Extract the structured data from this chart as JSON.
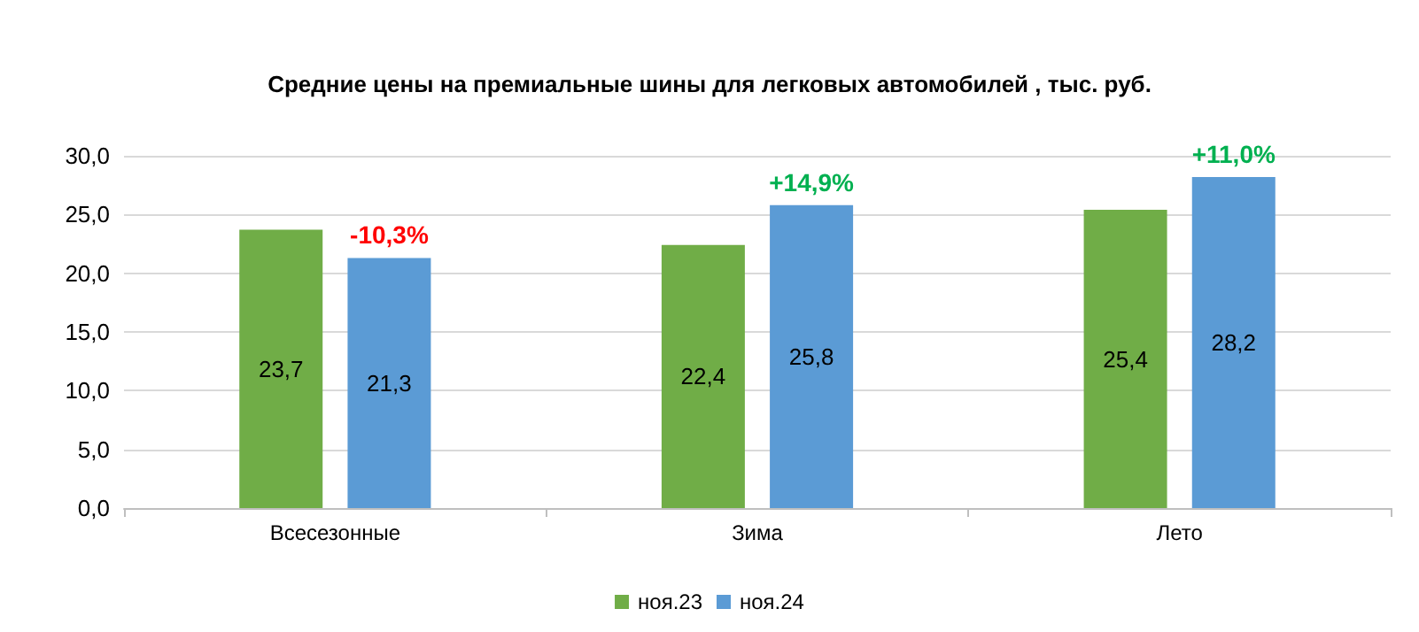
{
  "chart_data": {
    "type": "bar",
    "title": "Средние цены на премиальные шины для легковых автомобилей , тыс. руб.",
    "categories": [
      "Всесезонные",
      "Зима",
      "Лето"
    ],
    "series": [
      {
        "name": "ноя.23",
        "color": "#70ad47",
        "values": [
          23.7,
          22.4,
          25.4
        ],
        "value_labels": [
          "23,7",
          "22,4",
          "25,4"
        ]
      },
      {
        "name": "ноя.24",
        "color": "#5b9bd5",
        "values": [
          21.3,
          25.8,
          28.2
        ],
        "value_labels": [
          "21,3",
          "25,8",
          "28,2"
        ]
      }
    ],
    "ylim": [
      0,
      30
    ],
    "yticks": [
      {
        "value": 0,
        "label": "0,0"
      },
      {
        "value": 5,
        "label": "5,0"
      },
      {
        "value": 10,
        "label": "10,0"
      },
      {
        "value": 15,
        "label": "15,0"
      },
      {
        "value": 20,
        "label": "20,0"
      },
      {
        "value": 25,
        "label": "25,0"
      },
      {
        "value": 30,
        "label": "30,0"
      }
    ],
    "annotations": [
      "-10,3%",
      "+14,9%",
      "+11,0%"
    ],
    "grid": "y",
    "legend": "bottom"
  }
}
